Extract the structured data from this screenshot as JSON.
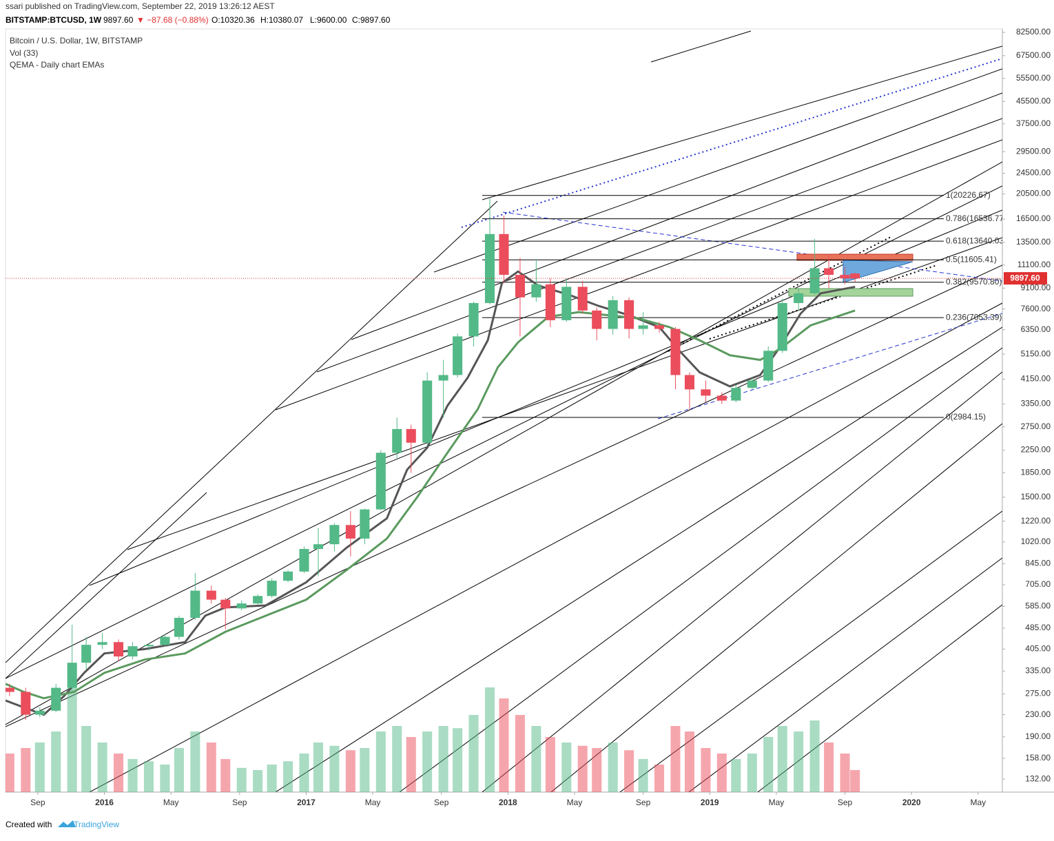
{
  "header": {
    "published": "ssari published on TradingView.com, September 22, 2019 13:26:12 AEST",
    "symbol": "BITSTAMP:BTCUSD, 1W",
    "last": "9897.60",
    "change": "▼ −87.68 (−0.88%)",
    "open": "O:10320.36",
    "high": "H:10380.07",
    "low": "L:9600.00",
    "close": "C:9897.60"
  },
  "legend": [
    "Bitcoin / U.S. Dollar, 1W, BITSTAMP",
    "Vol (33)",
    "QEMA - Daily chart EMAs"
  ],
  "footer": {
    "created": "Created with",
    "brand": "TradingView"
  },
  "chart_data": {
    "type": "candlestick",
    "log_scale": true,
    "xlim": [
      2015.51,
      2020.45
    ],
    "ylim": [
      118,
      85000
    ],
    "xticks": [
      {
        "value": 2015.67,
        "label": "Sep"
      },
      2016,
      {
        "value": 2016.33,
        "label": "May"
      },
      {
        "value": 2016.67,
        "label": "Sep"
      },
      2017,
      {
        "value": 2017.33,
        "label": "May"
      },
      {
        "value": 2017.67,
        "label": "Sep"
      },
      2018,
      {
        "value": 2018.33,
        "label": "May"
      },
      {
        "value": 2018.67,
        "label": "Sep"
      },
      2019,
      {
        "value": 2019.33,
        "label": "May"
      },
      {
        "value": 2019.67,
        "label": "Sep"
      },
      2020,
      {
        "value": 2020.33,
        "label": "May"
      }
    ],
    "yticks": [
      {
        "value": 82500,
        "label": "82500.00"
      },
      {
        "value": 67500,
        "label": "67500.00"
      },
      {
        "value": 55500,
        "label": "55500.00"
      },
      {
        "value": 45500,
        "label": "45500.00"
      },
      {
        "value": 37500,
        "label": "37500.00"
      },
      {
        "value": 29500,
        "label": "29500.00"
      },
      {
        "value": 24500,
        "label": "24500.00"
      },
      {
        "value": 20500,
        "label": "20500.00"
      },
      {
        "value": 16500,
        "label": "16500.00"
      },
      {
        "value": 13500,
        "label": "13500.00"
      },
      {
        "value": 11100,
        "label": "11100.00"
      },
      {
        "value": 9100,
        "label": "9100.00"
      },
      {
        "value": 7600,
        "label": "7600.00"
      },
      {
        "value": 6350,
        "label": "6350.00"
      },
      {
        "value": 5150,
        "label": "5150.00"
      },
      {
        "value": 4150,
        "label": "4150.00"
      },
      {
        "value": 3350,
        "label": "3350.00"
      },
      {
        "value": 2750,
        "label": "2750.00"
      },
      {
        "value": 2250,
        "label": "2250.00"
      },
      {
        "value": 1850,
        "label": "1850.00"
      },
      {
        "value": 1500,
        "label": "1500.00"
      },
      {
        "value": 1220,
        "label": "1220.00"
      },
      {
        "value": 1020,
        "label": "1020.00"
      },
      {
        "value": 845,
        "label": "845.00"
      },
      {
        "value": 705,
        "label": "705.00"
      },
      {
        "value": 585,
        "label": "585.00"
      },
      {
        "value": 485,
        "label": "485.00"
      },
      {
        "value": 405,
        "label": "405.00"
      },
      {
        "value": 335,
        "label": "335.00"
      },
      {
        "value": 275,
        "label": "275.00"
      },
      {
        "value": 230,
        "label": "230.00"
      },
      {
        "value": 190,
        "label": "190.00"
      },
      {
        "value": 158,
        "label": "158.00"
      },
      {
        "value": 132,
        "label": "132.00"
      }
    ],
    "up_color": "#53b987",
    "down_color": "#eb4d5c",
    "x": [
      2015.53,
      2015.61,
      2015.68,
      2015.76,
      2015.84,
      2015.91,
      2015.99,
      2016.07,
      2016.14,
      2016.22,
      2016.3,
      2016.37,
      2016.45,
      2016.53,
      2016.6,
      2016.68,
      2016.76,
      2016.83,
      2016.91,
      2016.99,
      2017.06,
      2017.14,
      2017.22,
      2017.29,
      2017.37,
      2017.45,
      2017.52,
      2017.6,
      2017.68,
      2017.75,
      2017.83,
      2017.91,
      2017.98,
      2018.06,
      2018.14,
      2018.21,
      2018.29,
      2018.37,
      2018.44,
      2018.52,
      2018.6,
      2018.67,
      2018.75,
      2018.83,
      2018.9,
      2018.98,
      2019.06,
      2019.13,
      2019.21,
      2019.29,
      2019.36,
      2019.44,
      2019.52,
      2019.59,
      2019.67,
      2019.72
    ],
    "open": [
      290,
      280,
      230,
      238,
      290,
      360,
      420,
      430,
      380,
      415,
      420,
      450,
      530,
      670,
      620,
      575,
      600,
      640,
      730,
      790,
      960,
      1000,
      1180,
      1050,
      1350,
      2200,
      2700,
      2400,
      4100,
      4300,
      6000,
      8000,
      14500,
      10200,
      8400,
      9400,
      6900,
      9200,
      7500,
      6400,
      8200,
      6400,
      6600,
      6400,
      4300,
      3800,
      3600,
      3450,
      3850,
      4100,
      5300,
      8000,
      8700,
      10800,
      10200,
      10320.36
    ],
    "high": [
      300,
      290,
      245,
      300,
      500,
      450,
      465,
      440,
      430,
      425,
      460,
      540,
      780,
      700,
      630,
      615,
      650,
      745,
      800,
      980,
      1150,
      1200,
      1330,
      1360,
      2250,
      2980,
      2800,
      4400,
      4900,
      6150,
      8100,
      19700,
      17000,
      11800,
      11700,
      9900,
      9900,
      9700,
      7700,
      8500,
      8400,
      7400,
      6800,
      6500,
      4400,
      4100,
      3700,
      3950,
      4200,
      5500,
      8300,
      9100,
      13900,
      12200,
      10900,
      10380.07
    ],
    "low": [
      270,
      220,
      225,
      235,
      280,
      340,
      405,
      365,
      370,
      400,
      415,
      440,
      520,
      600,
      480,
      565,
      595,
      630,
      720,
      780,
      760,
      940,
      900,
      1000,
      1340,
      2100,
      1850,
      2350,
      2980,
      4200,
      5500,
      7900,
      9500,
      6000,
      8100,
      6500,
      6800,
      7300,
      5800,
      6100,
      5900,
      6100,
      6200,
      3800,
      3200,
      3400,
      3350,
      3400,
      3800,
      4050,
      5200,
      7500,
      8600,
      9100,
      9400,
      9600
    ],
    "close": [
      280,
      230,
      238,
      290,
      360,
      420,
      430,
      380,
      415,
      420,
      450,
      530,
      670,
      620,
      575,
      600,
      640,
      730,
      790,
      960,
      1000,
      1180,
      1050,
      1350,
      2200,
      2700,
      2400,
      4100,
      4300,
      6000,
      8000,
      14500,
      10200,
      8400,
      9400,
      6900,
      9200,
      7500,
      6400,
      8200,
      6400,
      6600,
      6400,
      4300,
      3800,
      3600,
      3450,
      3850,
      4100,
      5300,
      8000,
      8700,
      10800,
      10200,
      9900,
      9897.6
    ],
    "volume": [
      35,
      40,
      45,
      55,
      100,
      60,
      45,
      35,
      30,
      28,
      25,
      40,
      55,
      45,
      30,
      22,
      20,
      25,
      28,
      35,
      45,
      42,
      38,
      40,
      55,
      60,
      50,
      55,
      60,
      58,
      70,
      95,
      85,
      70,
      60,
      50,
      45,
      42,
      40,
      45,
      38,
      30,
      25,
      60,
      55,
      40,
      35,
      30,
      35,
      50,
      60,
      55,
      65,
      45,
      35,
      20
    ],
    "lines": [
      {
        "color": "#555555",
        "x": [
          2015.51,
          2015.6,
          2015.7,
          2015.8,
          2015.9,
          2016.0,
          2016.2,
          2016.4,
          2016.5,
          2016.6,
          2016.8,
          2017.0,
          2017.2,
          2017.4,
          2017.5,
          2017.6,
          2017.7,
          2017.8,
          2017.9,
          2017.97,
          2018.05,
          2018.15,
          2018.3,
          2018.45,
          2018.6,
          2018.75,
          2018.85,
          2018.95,
          2019.1,
          2019.25,
          2019.35,
          2019.45,
          2019.55,
          2019.72
        ],
        "values": [
          260,
          245,
          230,
          270,
          330,
          390,
          405,
          430,
          540,
          580,
          590,
          720,
          970,
          1250,
          1900,
          2300,
          3300,
          4200,
          5800,
          9500,
          10500,
          9300,
          8600,
          7800,
          7200,
          6500,
          5300,
          4400,
          3900,
          4300,
          5500,
          7300,
          8700,
          9200
        ]
      },
      {
        "color": "#5a9a5e",
        "x": [
          2015.51,
          2015.6,
          2015.7,
          2015.85,
          2016.0,
          2016.2,
          2016.4,
          2016.6,
          2016.8,
          2017.0,
          2017.2,
          2017.4,
          2017.55,
          2017.7,
          2017.85,
          2017.95,
          2018.05,
          2018.2,
          2018.35,
          2018.5,
          2018.65,
          2018.8,
          2018.95,
          2019.1,
          2019.25,
          2019.35,
          2019.5,
          2019.72
        ],
        "values": [
          300,
          280,
          265,
          280,
          330,
          370,
          390,
          470,
          540,
          620,
          800,
          1050,
          1500,
          2200,
          3200,
          4600,
          5700,
          7100,
          7400,
          7200,
          7000,
          6500,
          5800,
          5100,
          4900,
          5400,
          6600,
          7500
        ]
      }
    ],
    "fib_levels": [
      {
        "value": 20226.67,
        "label": "1(20226.67)"
      },
      {
        "value": 16536.77,
        "label": "0.786(16536.77)"
      },
      {
        "value": 13640.03,
        "label": "0.618(13640.03)"
      },
      {
        "value": 11605.41,
        "label": "0.5(11605.41)"
      },
      {
        "value": 9570.8,
        "label": "0.382(9570.80)"
      },
      {
        "value": 7053.39,
        "label": "0.236(7053.39)"
      },
      {
        "value": 2984.15,
        "label": "0(2984.15)"
      }
    ],
    "last_price": {
      "value": 9897.6,
      "label": "9897.60"
    }
  }
}
